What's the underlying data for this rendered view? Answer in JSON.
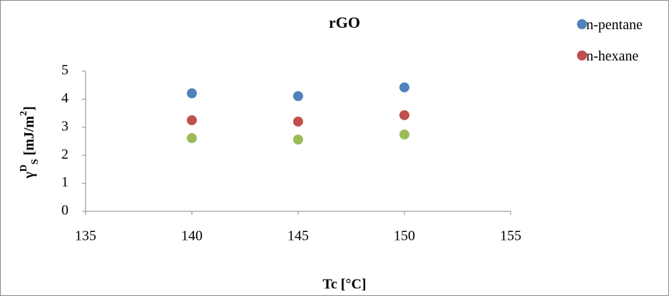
{
  "chart_data": {
    "type": "scatter",
    "title": "rGO",
    "xlabel": "Tc [°C]",
    "ylabel_parts": [
      "γ",
      "D",
      "S",
      " [mJ/m",
      "2",
      "]"
    ],
    "x": [
      140,
      145,
      150
    ],
    "series": [
      {
        "name": "n-pentane",
        "color": "#4f81bd",
        "values": [
          4.21,
          4.11,
          4.42
        ]
      },
      {
        "name": "n-hexane",
        "color": "#c0504d",
        "values": [
          3.25,
          3.2,
          3.43
        ]
      },
      {
        "name": null,
        "color": "#9bbb59",
        "values": [
          2.61,
          2.56,
          2.74
        ]
      }
    ],
    "xlim": [
      135,
      155
    ],
    "xticks": [
      135,
      140,
      145,
      150,
      155
    ],
    "ylim": [
      0,
      5
    ],
    "yticks": [
      0,
      1,
      2,
      3,
      4,
      5
    ],
    "grid": false,
    "legend": "right"
  }
}
